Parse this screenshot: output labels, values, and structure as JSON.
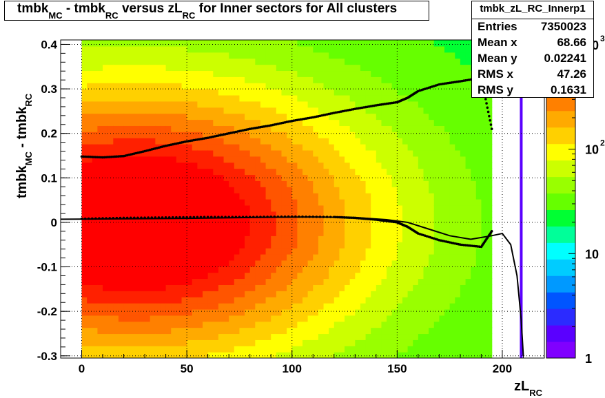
{
  "title": {
    "parts": [
      {
        "text": "tmbk",
        "sub": "MC"
      },
      {
        "text": " - tmbk",
        "sub": "RC"
      },
      {
        "text": " versus zL",
        "sub": "RC"
      },
      {
        "text": " for Inner sectors for All clusters",
        "sub": ""
      }
    ]
  },
  "stats": {
    "name": "tmbk_zL_RC_Innerp1",
    "rows": [
      {
        "label": "Entries",
        "value": "7350023"
      },
      {
        "label": "Mean x",
        "value": "68.66"
      },
      {
        "label": "Mean y",
        "value": "0.02241"
      },
      {
        "label": "RMS x",
        "value": "47.26"
      },
      {
        "label": "RMS y",
        "value": "0.1631"
      }
    ]
  },
  "chart_data": {
    "type": "heatmap",
    "title": "tmbk_MC - tmbk_RC versus zL_RC for Inner sectors for All clusters",
    "xlabel": "zL_RC",
    "ylabel": "tmbk_MC - tmbk_RC",
    "xlim": [
      -10,
      220
    ],
    "ylim": [
      -0.305,
      0.41
    ],
    "x_ticks": [
      0,
      50,
      100,
      150,
      200
    ],
    "x_tick_labels": [
      "0",
      "50",
      "100",
      "150",
      "200"
    ],
    "y_ticks": [
      -0.3,
      -0.2,
      -0.1,
      0,
      0.1,
      0.2,
      0.3,
      0.4
    ],
    "y_tick_labels": [
      "-0.3",
      "-0.2",
      "-0.1",
      "0",
      "0.1",
      "0.2",
      "0.3",
      "0.4"
    ],
    "grid": true,
    "z_scale": "log",
    "z_range": [
      1,
      1000
    ],
    "z_tick_labels": [
      "1",
      "10",
      "10^2",
      "10^3"
    ],
    "palette": [
      "#8000ff",
      "#5a00ff",
      "#2b2bff",
      "#0055ff",
      "#0099ff",
      "#00ccff",
      "#00ffff",
      "#00ff99",
      "#00ff33",
      "#66ff00",
      "#99ff00",
      "#ccff00",
      "#ffff00",
      "#ffd000",
      "#ffaa00",
      "#ff8000",
      "#ff5500",
      "#ff2000",
      "#ff0000"
    ],
    "data_extent_x": [
      0,
      195
    ],
    "sparse_column_x": 209,
    "series": [
      {
        "name": "upper profile",
        "x": [
          0,
          10,
          20,
          30,
          40,
          50,
          60,
          70,
          80,
          90,
          100,
          110,
          120,
          130,
          140,
          150,
          155,
          160,
          170,
          180,
          190,
          195
        ],
        "y": [
          0.148,
          0.146,
          0.149,
          0.16,
          0.172,
          0.182,
          0.19,
          0.2,
          0.21,
          0.218,
          0.228,
          0.236,
          0.246,
          0.255,
          0.263,
          0.27,
          0.28,
          0.295,
          0.31,
          0.317,
          0.325,
          0.21
        ]
      },
      {
        "name": "lower profile",
        "x": [
          0,
          20,
          40,
          60,
          80,
          100,
          120,
          130,
          140,
          150,
          155,
          160,
          170,
          180,
          190,
          195
        ],
        "y": [
          0.008,
          0.01,
          0.011,
          0.012,
          0.012,
          0.013,
          0.012,
          0.01,
          0.006,
          0.0,
          -0.01,
          -0.025,
          -0.04,
          -0.05,
          -0.055,
          -0.02
        ]
      },
      {
        "name": "fit",
        "x": [
          -10,
          20,
          50,
          80,
          110,
          130,
          145,
          155,
          165,
          175,
          185,
          195,
          200,
          204,
          207,
          209,
          210
        ],
        "y": [
          0.007,
          0.008,
          0.009,
          0.011,
          0.012,
          0.011,
          0.006,
          0.0,
          -0.015,
          -0.03,
          -0.038,
          -0.03,
          -0.025,
          -0.05,
          -0.12,
          -0.22,
          -0.3
        ]
      }
    ]
  }
}
